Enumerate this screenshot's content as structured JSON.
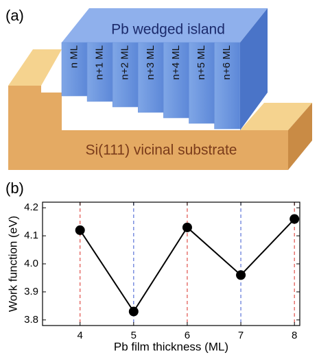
{
  "panel_labels": [
    "(a)",
    "(b)"
  ],
  "diagram": {
    "island_label": "Pb wedged island",
    "layers": [
      "n ML",
      "n+1 ML",
      "n+2 ML",
      "n+3 ML",
      "n+4 ML",
      "n+5 ML",
      "n+6 ML"
    ],
    "substrate_label": "Si(111) vicinal substrate"
  },
  "chart_data": {
    "type": "line",
    "x_label": "Pb film thickness (ML)",
    "y_label": "Work function (eV)",
    "x": [
      4,
      5,
      6,
      7,
      8
    ],
    "series": [
      {
        "color": "#000000",
        "values": [
          4.12,
          3.83,
          4.13,
          3.96,
          4.16
        ]
      }
    ],
    "xlim": [
      3.3,
      8.1
    ],
    "xticks": [
      4,
      5,
      6,
      7,
      8
    ],
    "ylim": [
      3.78,
      4.22
    ],
    "yticks": [
      3.8,
      3.9,
      {
        "value": 4,
        "label": "4.0"
      },
      4.1,
      4.2
    ],
    "grid": true,
    "xgrid_colors": [
      "#e0504a",
      "#5a72d8",
      "#e0504a",
      "#5a72d8",
      "#e0504a"
    ]
  }
}
